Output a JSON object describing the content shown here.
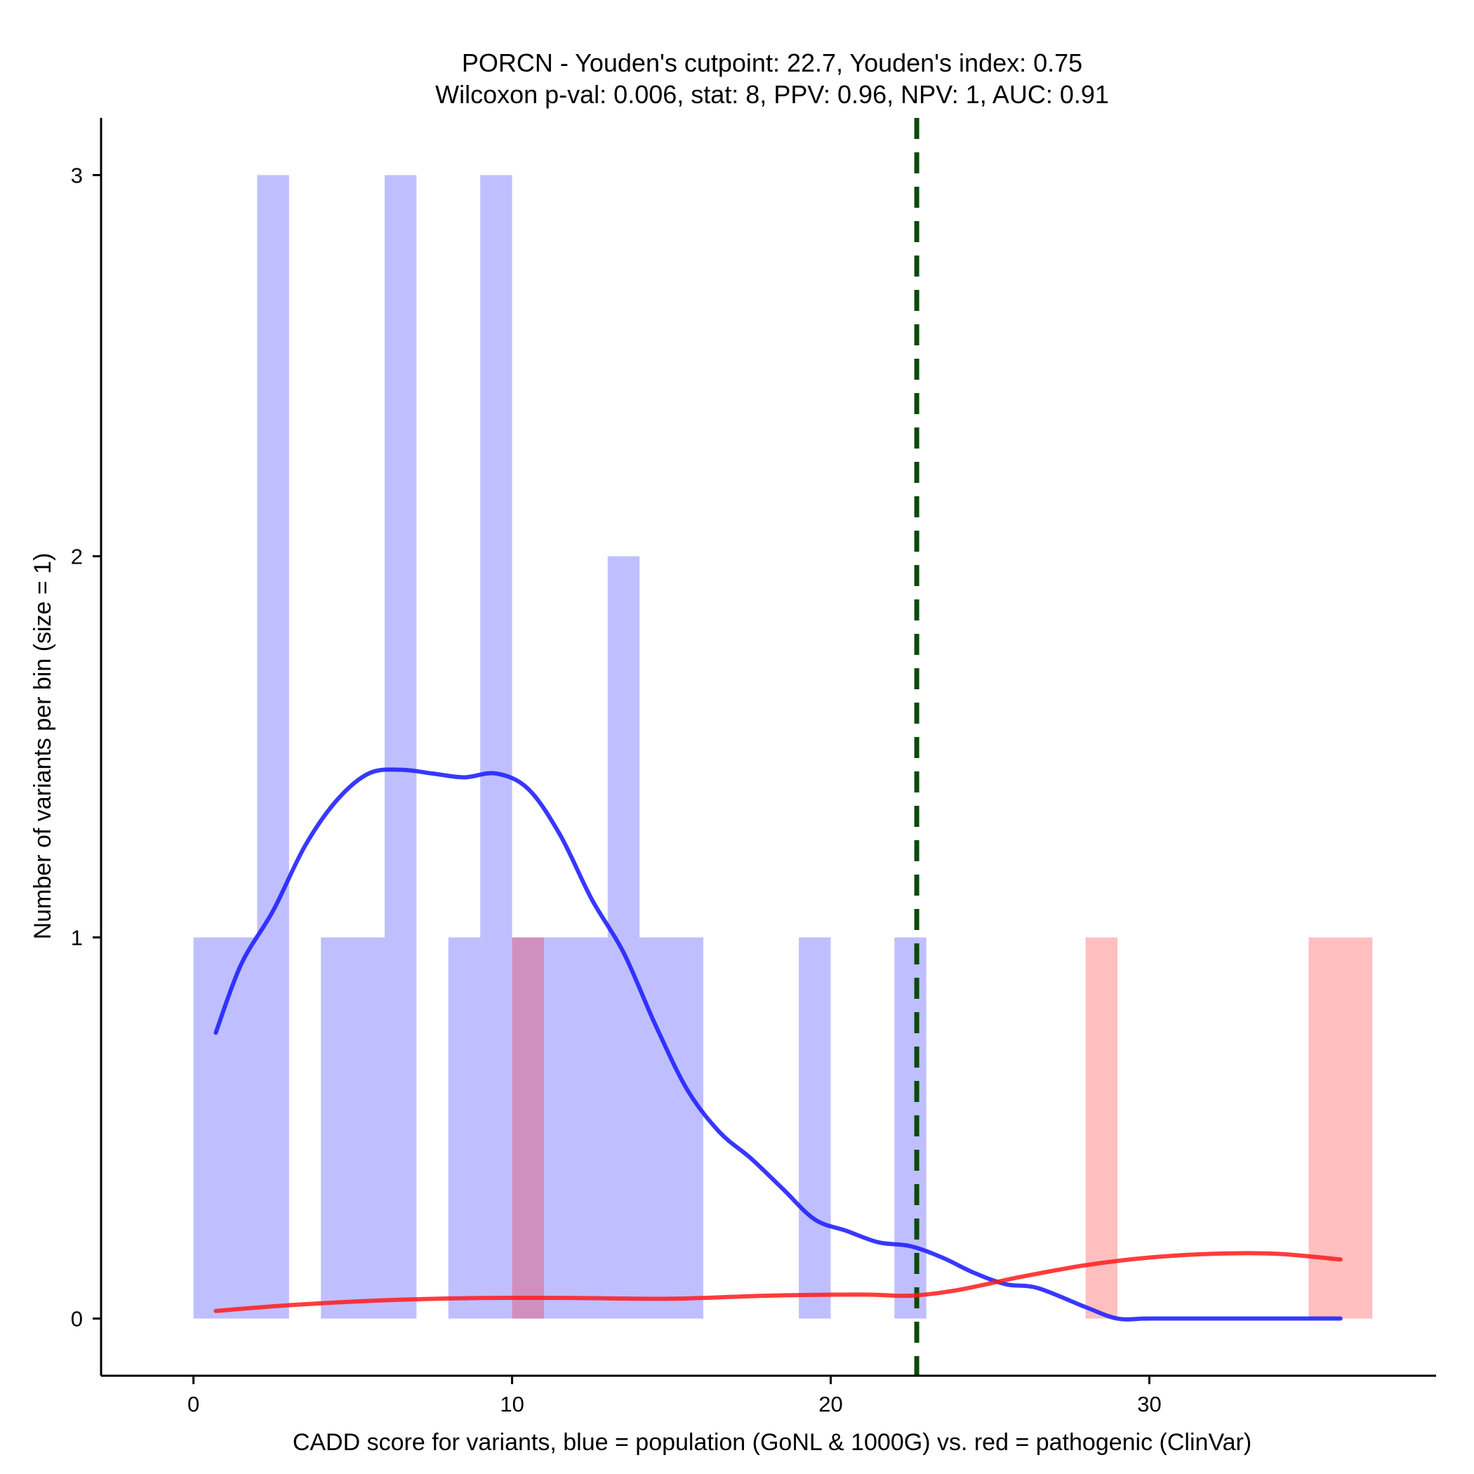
{
  "chart_data": {
    "type": "histogram",
    "title_line1": "PORCN - Youden's cutpoint: 22.7, Youden's index: 0.75",
    "title_line2": "Wilcoxon p-val: 0.006, stat: 8, PPV: 0.96, NPV: 1, AUC: 0.91",
    "xlabel": "CADD score for variants, blue = population (GoNL & 1000G) vs. red = pathogenic (ClinVar)",
    "ylabel": "Number of variants per bin (size = 1)",
    "xlim": [
      -2.9,
      39
    ],
    "ylim": [
      -0.15,
      3.15
    ],
    "x_ticks": [
      0,
      10,
      20,
      30
    ],
    "y_ticks": [
      0,
      1,
      2,
      3
    ],
    "cutpoint": 22.7,
    "bin_size": 1,
    "series": [
      {
        "name": "population (GoNL & 1000G)",
        "color": "#0000ff",
        "fill_opacity": 0.25,
        "bins": [
          {
            "x": 0,
            "count": 1
          },
          {
            "x": 1,
            "count": 1
          },
          {
            "x": 2,
            "count": 3
          },
          {
            "x": 4,
            "count": 1
          },
          {
            "x": 5,
            "count": 1
          },
          {
            "x": 6,
            "count": 3
          },
          {
            "x": 8,
            "count": 1
          },
          {
            "x": 9,
            "count": 3
          },
          {
            "x": 10,
            "count": 1
          },
          {
            "x": 11,
            "count": 1
          },
          {
            "x": 12,
            "count": 1
          },
          {
            "x": 13,
            "count": 2
          },
          {
            "x": 14,
            "count": 1
          },
          {
            "x": 15,
            "count": 1
          },
          {
            "x": 19,
            "count": 1
          },
          {
            "x": 22,
            "count": 1
          }
        ],
        "density_x": [
          0.7,
          1.5,
          2.5,
          3.5,
          4.5,
          5.5,
          6.5,
          7.5,
          8.5,
          9.5,
          10.5,
          11.5,
          12.5,
          13.5,
          14.5,
          15.5,
          16.5,
          17.5,
          18.5,
          19.5,
          20.5,
          21.5,
          22.5,
          23.5,
          24.5,
          25.5,
          26.5,
          28.0,
          29.0,
          30.0,
          32.0,
          34.0,
          36.0
        ],
        "density_y": [
          0.75,
          0.93,
          1.07,
          1.24,
          1.36,
          1.43,
          1.44,
          1.43,
          1.42,
          1.43,
          1.39,
          1.27,
          1.1,
          0.96,
          0.77,
          0.6,
          0.49,
          0.42,
          0.34,
          0.26,
          0.23,
          0.2,
          0.19,
          0.16,
          0.12,
          0.09,
          0.08,
          0.03,
          0.0,
          0.0,
          0.0,
          0.0,
          0.0
        ]
      },
      {
        "name": "pathogenic (ClinVar)",
        "color": "#ff0000",
        "fill_opacity": 0.25,
        "bins": [
          {
            "x": 10,
            "count": 1
          },
          {
            "x": 28,
            "count": 1
          },
          {
            "x": 35,
            "count": 1
          },
          {
            "x": 36,
            "count": 1
          }
        ],
        "density_x": [
          0.7,
          3,
          6,
          9,
          12,
          15,
          18,
          21,
          22.5,
          24,
          26,
          28,
          30,
          32,
          34,
          36
        ],
        "density_y": [
          0.02,
          0.035,
          0.048,
          0.054,
          0.054,
          0.052,
          0.06,
          0.063,
          0.06,
          0.075,
          0.11,
          0.14,
          0.16,
          0.17,
          0.17,
          0.155
        ]
      }
    ]
  }
}
